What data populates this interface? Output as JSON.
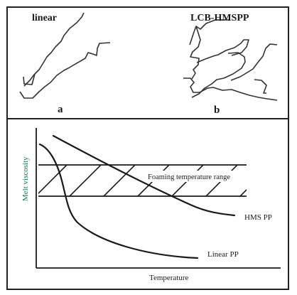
{
  "top_panels": {
    "left": {
      "title": "linear",
      "letter": "a"
    },
    "right": {
      "title": "LCB-HMSPP",
      "letter": "b"
    }
  },
  "graph": {
    "y_axis_label": "Melt viscosity",
    "x_axis_label": "Temperature",
    "band_label": "Foaming temperature range",
    "curves": [
      {
        "name": "HMS PP"
      },
      {
        "name": "Linear PP"
      }
    ]
  },
  "colors": {
    "line": "#1a1a1a",
    "y_label": "#1f6f4a"
  }
}
